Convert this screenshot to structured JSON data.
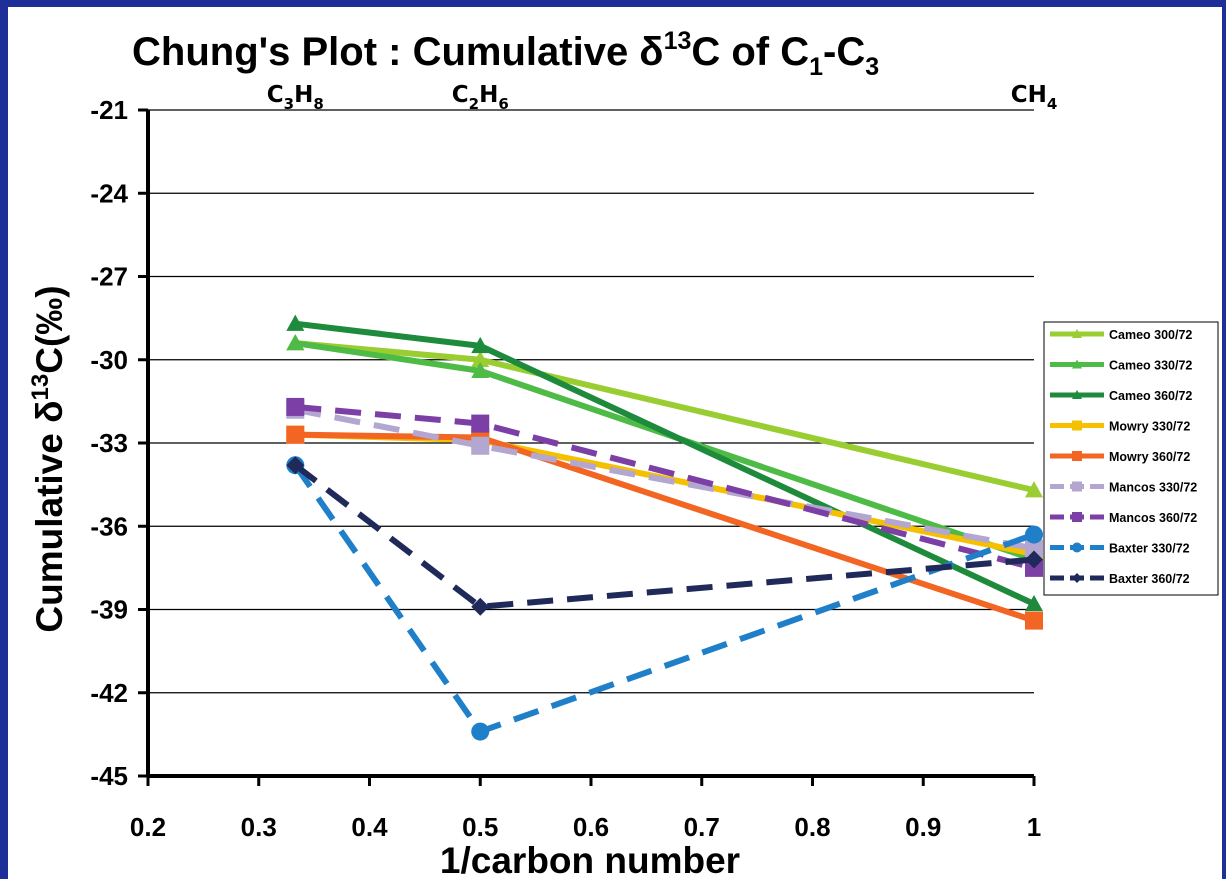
{
  "chart_data": {
    "type": "line",
    "title_main": "Chung's Plot : Cumulative δ",
    "title_sup": "13",
    "title_mid": "C of C",
    "title_sub1": "1",
    "title_dash": "-C",
    "title_sub2": "3",
    "ylabel_main": "Cumulative δ",
    "ylabel_sup": "13",
    "ylabel_end": "C(‰)",
    "xlabel": "1/carbon number",
    "xlim": [
      0.2,
      1.0
    ],
    "ylim": [
      -45,
      -21
    ],
    "xticks": [
      0.2,
      0.3,
      0.4,
      0.5,
      0.6,
      0.7,
      0.8,
      0.9,
      1
    ],
    "yticks": [
      -21,
      -24,
      -27,
      -30,
      -33,
      -36,
      -39,
      -42,
      -45
    ],
    "grid": "horizontal",
    "legend_position": "right",
    "top_labels": [
      {
        "x": 0.333,
        "base": "C",
        "sub1": "3",
        "mid": "H",
        "sub2": "8"
      },
      {
        "x": 0.5,
        "base": "C",
        "sub1": "2",
        "mid": "H",
        "sub2": "6"
      },
      {
        "x": 1.0,
        "base": "CH",
        "sub1": "4",
        "mid": "",
        "sub2": ""
      }
    ],
    "x": [
      0.333,
      0.5,
      1.0
    ],
    "series": [
      {
        "name": "Cameo 300/72",
        "values": [
          -29.4,
          -30.0,
          -34.7
        ],
        "color": "#9acd32",
        "dash": "solid",
        "marker": "triangle"
      },
      {
        "name": "Cameo 330/72",
        "values": [
          -29.4,
          -30.4,
          -37.2
        ],
        "color": "#4fbb47",
        "dash": "solid",
        "marker": "triangle"
      },
      {
        "name": "Cameo 360/72",
        "values": [
          -28.7,
          -29.5,
          -38.8
        ],
        "color": "#1e8a3c",
        "dash": "solid",
        "marker": "triangle"
      },
      {
        "name": "Mowry 330/72",
        "values": [
          -32.7,
          -32.9,
          -37.0
        ],
        "color": "#f5c000",
        "dash": "solid",
        "marker": "square"
      },
      {
        "name": "Mowry 360/72",
        "values": [
          -32.7,
          -32.8,
          -39.4
        ],
        "color": "#f26522",
        "dash": "solid",
        "marker": "square"
      },
      {
        "name": "Mancos 330/72",
        "values": [
          -31.8,
          -33.1,
          -36.8
        ],
        "color": "#b3a6d0",
        "dash": "dashed",
        "marker": "square"
      },
      {
        "name": "Mancos 360/72",
        "values": [
          -31.7,
          -32.3,
          -37.5
        ],
        "color": "#7b3fa6",
        "dash": "dashed",
        "marker": "square"
      },
      {
        "name": "Baxter 330/72",
        "values": [
          -33.8,
          -43.4,
          -36.3
        ],
        "color": "#1f7fc9",
        "dash": "dashed",
        "marker": "circle"
      },
      {
        "name": "Baxter 360/72",
        "values": [
          -33.8,
          -38.9,
          -37.2
        ],
        "color": "#1f2a5a",
        "dash": "dashed",
        "marker": "diamond"
      }
    ]
  }
}
